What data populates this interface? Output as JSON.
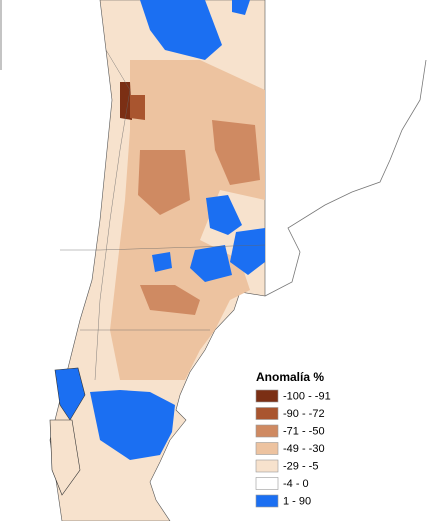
{
  "legend": {
    "title": "Anomalía %",
    "items": [
      {
        "label": "-100 - -91",
        "color": "#7b2f14"
      },
      {
        "label": "-90 - -72",
        "color": "#a9552f"
      },
      {
        "label": "-71 - -50",
        "color": "#cf8a62"
      },
      {
        "label": "-49 - -30",
        "color": "#edc3a0"
      },
      {
        "label": "-29 - -5",
        "color": "#f7e2cd"
      },
      {
        "label": "-4 - 0",
        "color": "#ffffff"
      },
      {
        "label": "1 - 90",
        "color": "#1b6ff2"
      }
    ]
  }
}
